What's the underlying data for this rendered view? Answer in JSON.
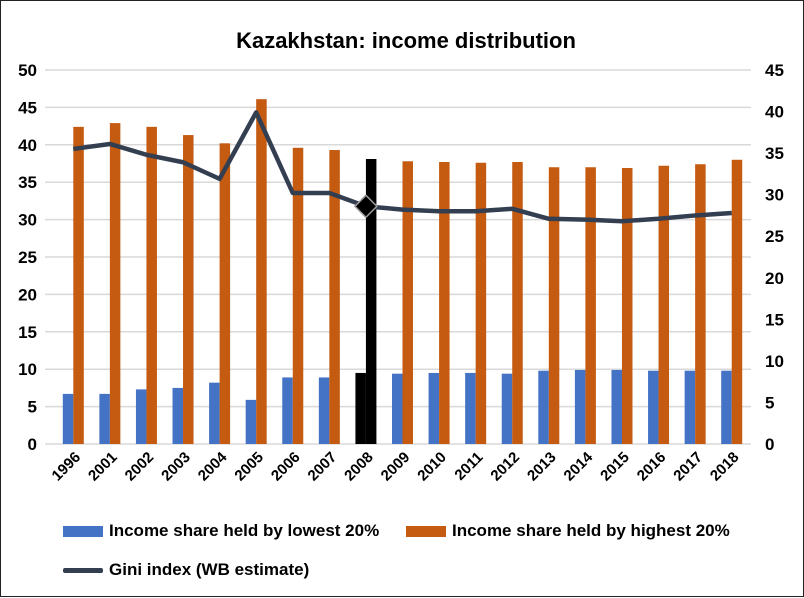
{
  "chart_data": {
    "type": "bar",
    "title": "Kazakhstan: income distribution",
    "categories": [
      "1996",
      "2001",
      "2002",
      "2003",
      "2004",
      "2005",
      "2006",
      "2007",
      "2008",
      "2009",
      "2010",
      "2011",
      "2012",
      "2013",
      "2014",
      "2015",
      "2016",
      "2017",
      "2018"
    ],
    "series": [
      {
        "name": "Income share held by lowest 20%",
        "type": "bar",
        "axis": "left",
        "color": "#4472C4",
        "values": [
          6.7,
          6.7,
          7.3,
          7.5,
          8.2,
          5.9,
          8.9,
          8.9,
          9.5,
          9.4,
          9.5,
          9.5,
          9.4,
          9.8,
          9.9,
          9.9,
          9.8,
          9.8,
          9.8
        ]
      },
      {
        "name": "Income share held by highest 20%",
        "type": "bar",
        "axis": "left",
        "color": "#C55A11",
        "values": [
          42.4,
          42.9,
          42.4,
          41.3,
          40.2,
          46.1,
          39.6,
          39.3,
          38.1,
          37.8,
          37.7,
          37.6,
          37.7,
          37.0,
          37.0,
          36.9,
          37.2,
          37.4,
          38.0
        ]
      },
      {
        "name": "Gini index (WB estimate)",
        "type": "line",
        "axis": "right",
        "color": "#333F50",
        "values": [
          35.5,
          36.1,
          34.8,
          33.9,
          31.9,
          39.9,
          30.2,
          30.2,
          28.6,
          28.2,
          28.0,
          28.0,
          28.3,
          27.1,
          27.0,
          26.8,
          27.1,
          27.5,
          27.8
        ]
      }
    ],
    "highlight": {
      "category": "2008",
      "color": "#000000"
    },
    "left_axis": {
      "ylim": [
        0,
        50
      ],
      "ticks": [
        "0",
        "5",
        "10",
        "15",
        "20",
        "25",
        "30",
        "35",
        "40",
        "45",
        "50"
      ]
    },
    "right_axis": {
      "ylim": [
        0,
        45
      ],
      "ticks": [
        "0",
        "5",
        "10",
        "15",
        "20",
        "25",
        "30",
        "35",
        "40",
        "45"
      ]
    },
    "grid": true,
    "legend": "bottom",
    "gridline_color": "#D9D9D9"
  }
}
